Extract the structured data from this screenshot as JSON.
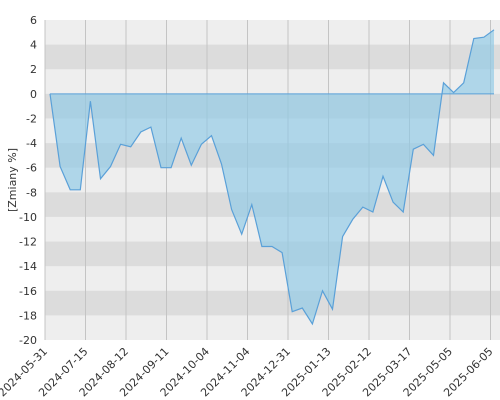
{
  "chart_data": {
    "type": "area",
    "ylabel": "[Zmiany %]",
    "ylim": [
      -20,
      6
    ],
    "yticks": [
      6,
      4,
      2,
      0,
      -2,
      -4,
      -6,
      -8,
      -10,
      -12,
      -14,
      -16,
      -18,
      -20
    ],
    "grid": true,
    "x_tick_labels": [
      "2024-05-31",
      "2024-07-15",
      "2024-08-12",
      "2024-09-11",
      "2024-10-04",
      "2024-11-04",
      "2024-12-31",
      "2025-01-13",
      "2025-02-12",
      "2025-03-17",
      "2025-05-05",
      "2025-06-05"
    ],
    "series": [
      {
        "values": [
          0,
          -5.9,
          -7.8,
          -7.8,
          -0.6,
          -6.9,
          -5.9,
          -4.1,
          -4.3,
          -3.1,
          -2.7,
          -6.0,
          -6.0,
          -3.6,
          -5.8,
          -4.1,
          -3.4,
          -5.7,
          -9.4,
          -11.4,
          -9.0,
          -12.4,
          -12.4,
          -12.9,
          -17.7,
          -17.4,
          -18.7,
          -16.0,
          -17.5,
          -11.6,
          -10.2,
          -9.2,
          -9.6,
          -6.7,
          -8.8,
          -9.6,
          -4.5,
          -4.1,
          -5.0,
          0.9,
          0.1,
          0.9,
          4.5,
          4.6,
          5.2
        ]
      }
    ],
    "colors": {
      "line": "#5aa0d8",
      "fill": "#8ecae6",
      "band_dark": "#dcdcdc",
      "band_light": "#eeeeee"
    }
  }
}
